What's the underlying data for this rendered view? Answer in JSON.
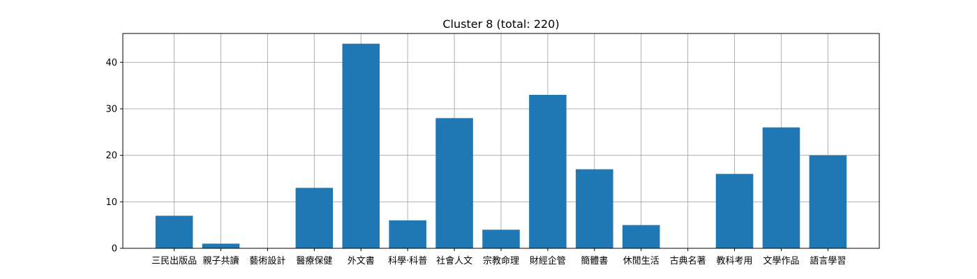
{
  "chart_data": {
    "type": "bar",
    "title": "Cluster 8 (total: 220)",
    "xlabel": "",
    "ylabel": "",
    "categories": [
      "三民出版品",
      "親子共讀",
      "藝術設計",
      "醫療保健",
      "外文書",
      "科學·科普",
      "社會人文",
      "宗教命理",
      "財經企管",
      "簡體書",
      "休閒生活",
      "古典名著",
      "教科考用",
      "文學作品",
      "語言學習"
    ],
    "values": [
      7,
      1,
      0,
      13,
      44,
      6,
      28,
      4,
      33,
      17,
      5,
      0,
      16,
      26,
      20
    ],
    "ylim": [
      0,
      46.2
    ],
    "yticks": [
      0,
      10,
      20,
      30,
      40
    ],
    "grid": true,
    "bar_color": "#1f77b4"
  }
}
